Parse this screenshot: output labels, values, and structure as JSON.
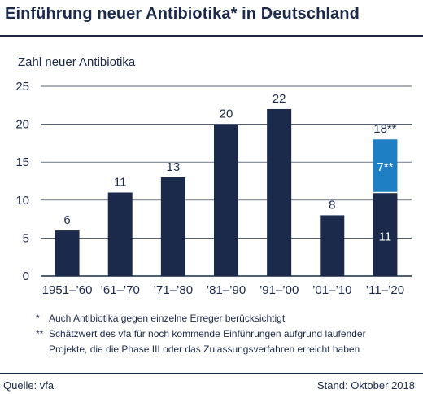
{
  "title": "Einführung neuer Antibiotika* in Deutschland",
  "chart_data": {
    "type": "bar",
    "ylabel": "Zahl neuer Antibiotika",
    "ylim": [
      0,
      25
    ],
    "yticks": [
      0,
      5,
      10,
      15,
      20,
      25
    ],
    "categories": [
      "1951–’60",
      "’61–’70",
      "’71–’80",
      "’81–’90",
      "’91–’00",
      "’01–’10",
      "’11–’20"
    ],
    "series": [
      {
        "values": [
          6,
          11,
          13,
          20,
          22,
          8,
          11
        ],
        "color": "#1b2a4a"
      },
      {
        "values": [
          0,
          0,
          0,
          0,
          0,
          0,
          7
        ],
        "color": "#1f7fc4"
      }
    ],
    "value_labels": [
      "6",
      "11",
      "13",
      "20",
      "22",
      "8",
      "18**"
    ],
    "segment_labels": {
      "base_last": "11",
      "stack_last": "7**"
    },
    "grid": true
  },
  "footnotes": [
    {
      "mark": "*",
      "lines": [
        "Auch Antibiotika gegen einzelne Erreger berücksichtigt"
      ]
    },
    {
      "mark": "**",
      "lines": [
        "Schätzwert des vfa für noch kommende Einführungen aufgrund laufender",
        "Projekte, die die Phase III oder das Zulassungsverfahren erreicht haben"
      ]
    }
  ],
  "source": "Quelle: vfa",
  "stand": "Stand: Oktober 2018",
  "colors": {
    "dark": "#1b2a4a",
    "accent": "#1f7fc4",
    "grid": "#1b2a4a"
  }
}
